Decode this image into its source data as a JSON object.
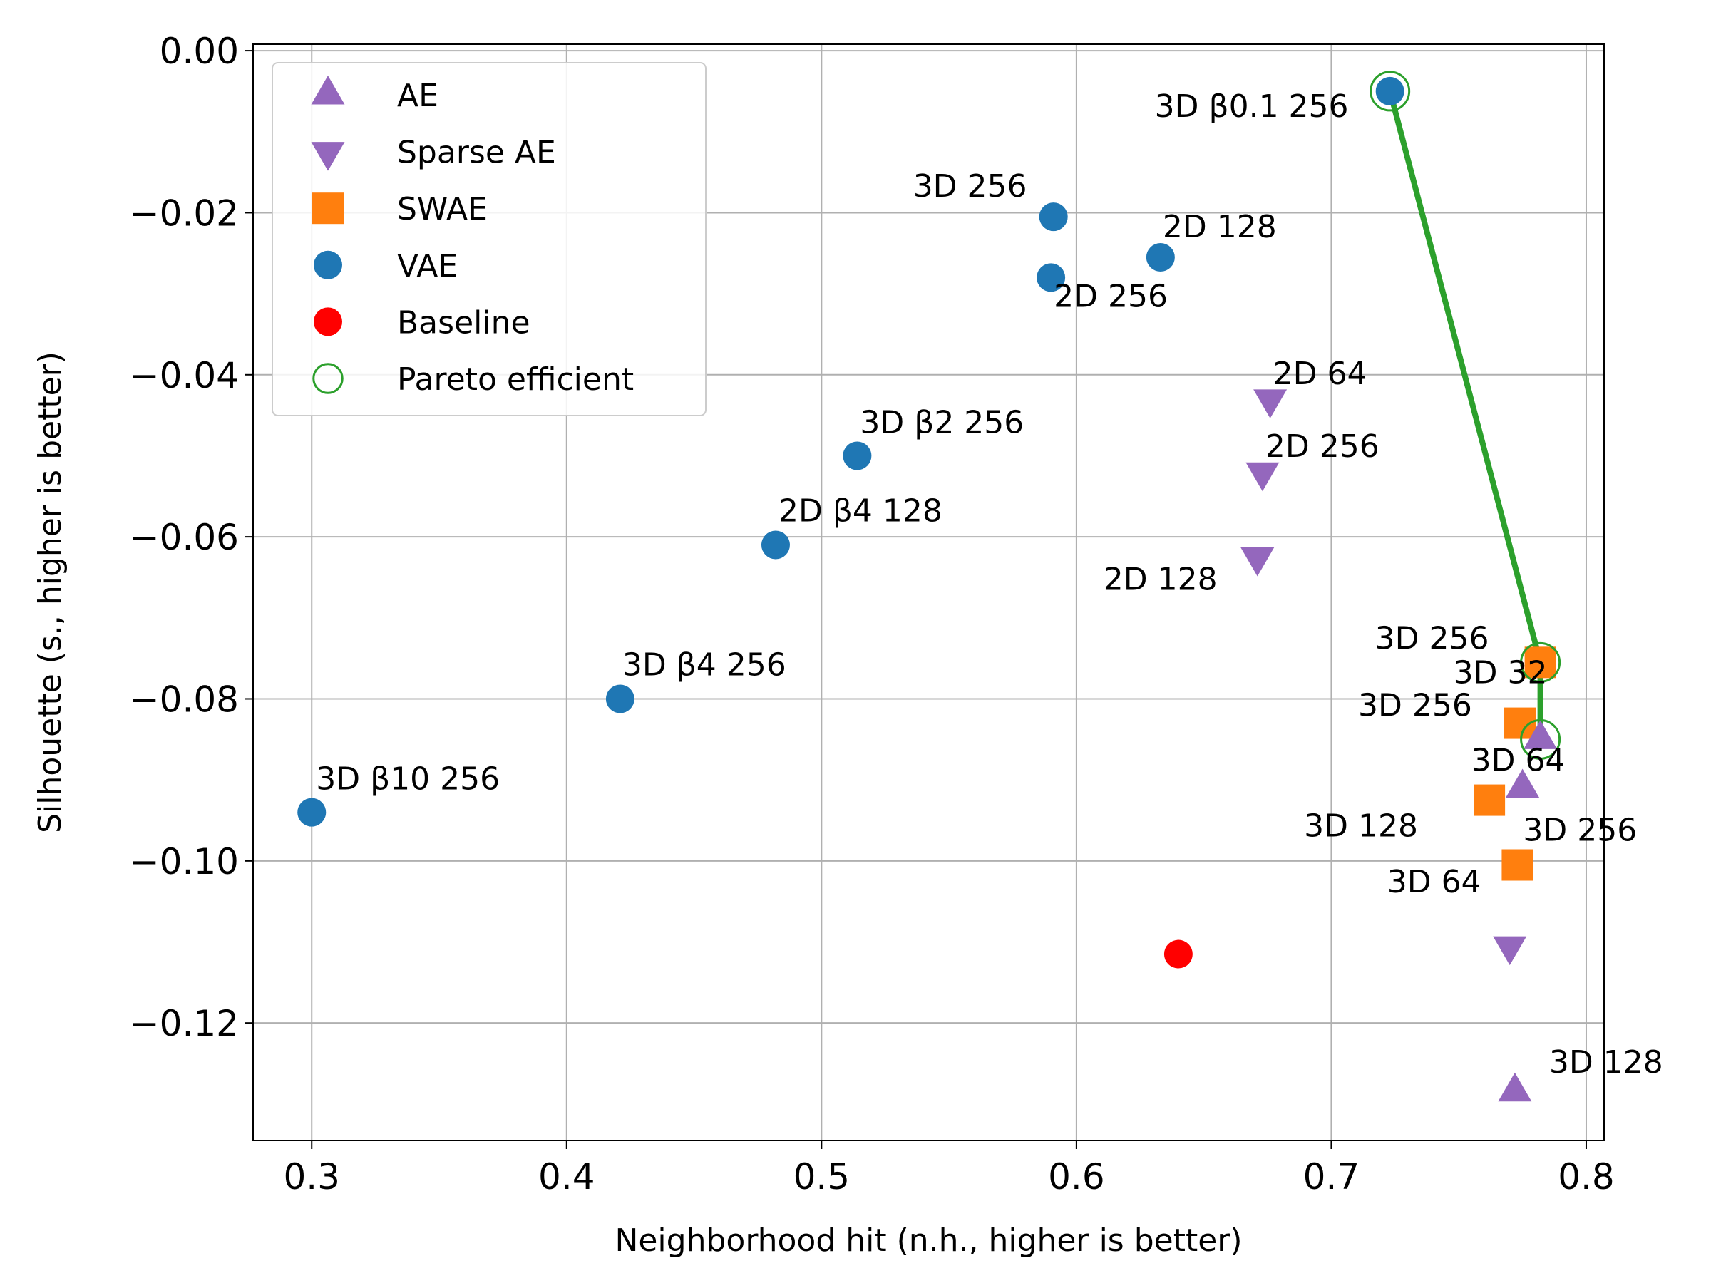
{
  "chart_data": {
    "type": "scatter",
    "xlabel": "Neighborhood hit (n.h., higher is better)",
    "ylabel": "Silhouette (s., higher is better)",
    "xlim": [
      0.277,
      0.807
    ],
    "ylim": [
      -0.1345,
      0.0008
    ],
    "xticks": [
      0.3,
      0.4,
      0.5,
      0.6,
      0.7,
      0.8
    ],
    "xtick_labels": [
      "0.3",
      "0.4",
      "0.5",
      "0.6",
      "0.7",
      "0.8"
    ],
    "yticks": [
      0.0,
      -0.02,
      -0.04,
      -0.06,
      -0.08,
      -0.1,
      -0.12
    ],
    "ytick_labels": [
      "0.00",
      "−0.02",
      "−0.04",
      "−0.06",
      "−0.08",
      "−0.10",
      "−0.12"
    ],
    "grid": true,
    "legend_position": "top-left",
    "legend": [
      {
        "label": "AE",
        "marker": "triangle-up",
        "color": "#9467bd"
      },
      {
        "label": "Sparse AE",
        "marker": "triangle-down",
        "color": "#9467bd"
      },
      {
        "label": "SWAE",
        "marker": "square",
        "color": "#ff7f0e"
      },
      {
        "label": "VAE",
        "marker": "circle",
        "color": "#1f77b4"
      },
      {
        "label": "Baseline",
        "marker": "circle",
        "color": "#ff0000"
      },
      {
        "label": "Pareto efficient",
        "marker": "open-circle",
        "color": "#2ca02c"
      }
    ],
    "series": [
      {
        "name": "AE",
        "marker": "triangle-up",
        "color": "#9467bd",
        "points": [
          {
            "x": 0.782,
            "y": -0.085,
            "label": "3D 32"
          },
          {
            "x": 0.775,
            "y": -0.091,
            "label": "3D 64"
          },
          {
            "x": 0.772,
            "y": -0.1285,
            "label": "3D 128"
          }
        ]
      },
      {
        "name": "Sparse AE",
        "marker": "triangle-down",
        "color": "#9467bd",
        "points": [
          {
            "x": 0.676,
            "y": -0.043,
            "label": "2D 64"
          },
          {
            "x": 0.673,
            "y": -0.052,
            "label": "2D 256"
          },
          {
            "x": 0.671,
            "y": -0.0625,
            "label": "2D 128"
          },
          {
            "x": 0.77,
            "y": -0.1105,
            "label": "3D 64"
          }
        ]
      },
      {
        "name": "SWAE",
        "marker": "square",
        "color": "#ff7f0e",
        "points": [
          {
            "x": 0.782,
            "y": -0.0755,
            "label": "3D 256"
          },
          {
            "x": 0.774,
            "y": -0.083,
            "label": "3D 256"
          },
          {
            "x": 0.762,
            "y": -0.0925,
            "label": "3D 128"
          },
          {
            "x": 0.773,
            "y": -0.1005,
            "label": "3D 256"
          }
        ]
      },
      {
        "name": "VAE",
        "marker": "circle",
        "color": "#1f77b4",
        "points": [
          {
            "x": 0.723,
            "y": -0.005,
            "label": "3D β0.1 256"
          },
          {
            "x": 0.591,
            "y": -0.0205,
            "label": "3D 256"
          },
          {
            "x": 0.633,
            "y": -0.0255,
            "label": "2D 128"
          },
          {
            "x": 0.59,
            "y": -0.028,
            "label": "2D 256"
          },
          {
            "x": 0.514,
            "y": -0.05,
            "label": "3D β2 256"
          },
          {
            "x": 0.482,
            "y": -0.061,
            "label": "2D β4 128"
          },
          {
            "x": 0.421,
            "y": -0.08,
            "label": "3D β4 256"
          },
          {
            "x": 0.3,
            "y": -0.094,
            "label": "3D β10 256"
          }
        ]
      },
      {
        "name": "Baseline",
        "marker": "circle",
        "color": "#ff0000",
        "points": [
          {
            "x": 0.64,
            "y": -0.1115,
            "label": ""
          }
        ]
      },
      {
        "name": "Pareto efficient",
        "marker": "open-circle",
        "color": "#2ca02c",
        "points": [
          {
            "x": 0.723,
            "y": -0.005
          },
          {
            "x": 0.782,
            "y": -0.0755
          },
          {
            "x": 0.782,
            "y": -0.085
          }
        ]
      }
    ],
    "pareto_line": {
      "color": "#2ca02c",
      "points": [
        {
          "x": 0.723,
          "y": -0.005
        },
        {
          "x": 0.782,
          "y": -0.0755
        },
        {
          "x": 0.782,
          "y": -0.085
        }
      ]
    }
  }
}
